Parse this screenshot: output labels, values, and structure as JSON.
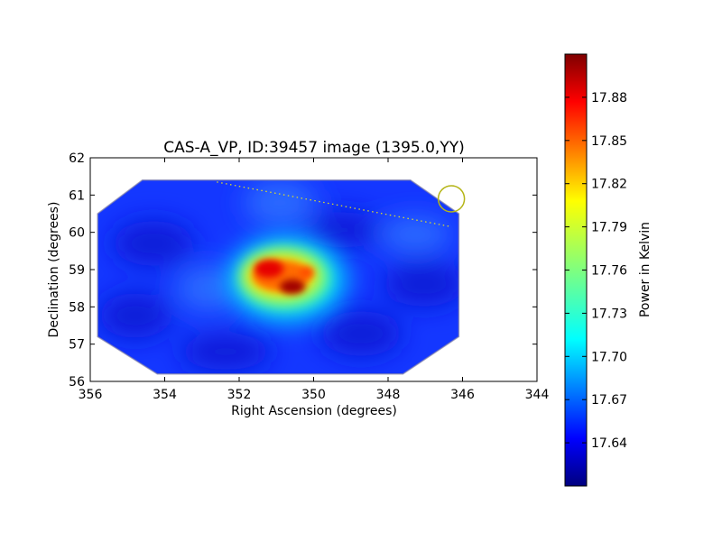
{
  "chart_data": {
    "type": "heatmap",
    "title": "CAS-A_VP, ID:39457 image (1395.0,YY)",
    "xlabel": "Right Ascension (degrees)",
    "ylabel": "Declination (degrees)",
    "xlim": [
      356,
      344
    ],
    "ylim": [
      56,
      62
    ],
    "xticks": [
      "356",
      "354",
      "352",
      "350",
      "348",
      "346",
      "344"
    ],
    "yticks": [
      "62",
      "61",
      "60",
      "59",
      "58",
      "57",
      "56"
    ],
    "grid": false,
    "colormap": "jet",
    "colorbar": {
      "label": "Power in Kelvin",
      "min": 17.61,
      "max": 17.91,
      "ticks": [
        "17.88",
        "17.85",
        "17.82",
        "17.79",
        "17.76",
        "17.73",
        "17.70",
        "17.67",
        "17.64"
      ]
    },
    "footprint_polygon": [
      [
        355.8,
        60.5
      ],
      [
        354.6,
        61.4
      ],
      [
        347.4,
        61.4
      ],
      [
        346.1,
        60.5
      ],
      [
        346.1,
        57.2
      ],
      [
        347.6,
        56.2
      ],
      [
        354.2,
        56.2
      ],
      [
        355.8,
        57.2
      ]
    ],
    "sources": [
      {
        "ra": 351.2,
        "dec": 58.95,
        "level": 17.9
      },
      {
        "ra": 350.6,
        "dec": 58.5,
        "level": 17.91
      },
      {
        "ra": 350.2,
        "dec": 59.0,
        "level": 17.84
      }
    ],
    "dotted_line": [
      [
        352.6,
        61.35
      ],
      [
        346.3,
        60.15
      ]
    ],
    "circle_marker": {
      "ra": 346.3,
      "dec": 60.9,
      "color": "#b5b518"
    }
  }
}
